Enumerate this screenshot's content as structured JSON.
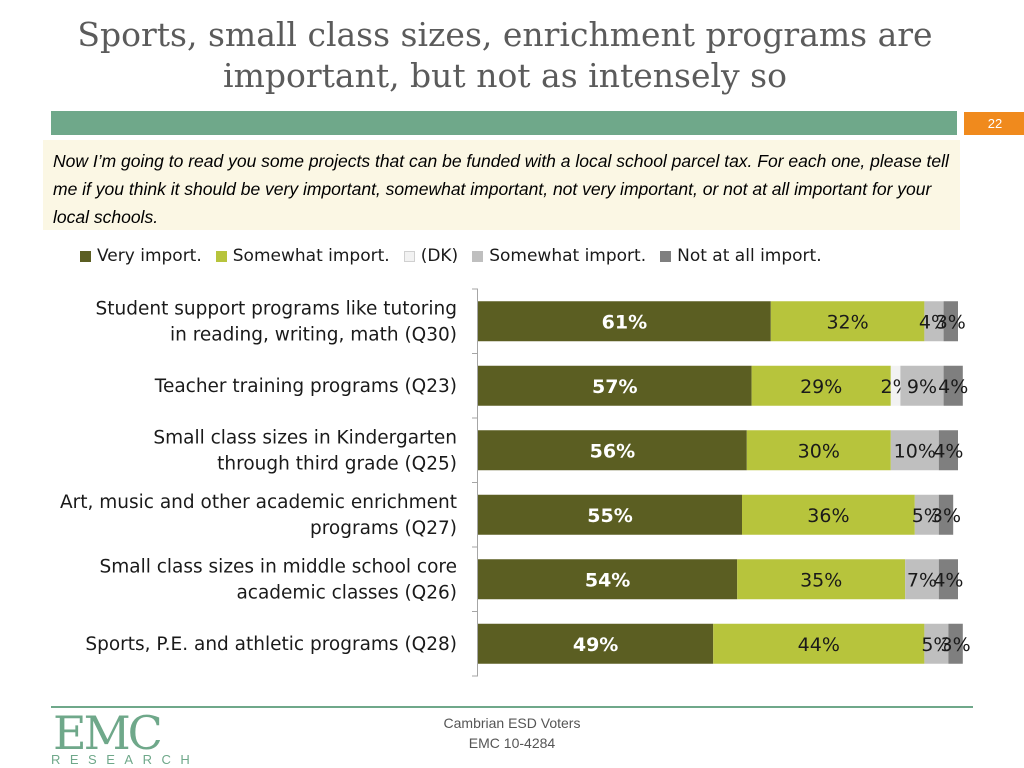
{
  "slide": {
    "title": "Sports, small class sizes, enrichment programs are important, but not as intensely so",
    "page_number": "22",
    "question": "Now I’m going to read you some projects that can be funded with a local school parcel tax. For each one, please tell me if you think it should be very important, somewhat important, not very important, or not at all important for your local schools."
  },
  "colors": {
    "very": "#5b5e22",
    "somewhat": "#b7c43c",
    "dk": "#f2f2f2",
    "not_very": "#bfbfbf",
    "not_at_all": "#7f7f7f",
    "accent_green": "#6fa88a",
    "accent_orange": "#f08a1d"
  },
  "chart_data": {
    "type": "bar",
    "orientation": "horizontal",
    "stacked": true,
    "legend_position": "top",
    "categories": [
      "Student support programs like tutoring in reading, writing, math (Q30)",
      "Teacher training programs (Q23)",
      "Small class sizes in Kindergarten through third grade (Q25)",
      "Art, music and other academic enrichment programs (Q27)",
      "Small class sizes in middle school core academic classes  (Q26)",
      "Sports, P.E. and athletic programs (Q28)"
    ],
    "series": [
      {
        "name": "Very import.",
        "color_key": "very",
        "values": [
          61,
          57,
          56,
          55,
          54,
          49
        ],
        "labels": [
          "61%",
          "57%",
          "56%",
          "55%",
          "54%",
          "49%"
        ]
      },
      {
        "name": "Somewhat import.",
        "color_key": "somewhat",
        "values": [
          32,
          29,
          30,
          36,
          35,
          44
        ],
        "labels": [
          "32%",
          "29%",
          "30%",
          "36%",
          "35%",
          "44%"
        ]
      },
      {
        "name": "(DK)",
        "color_key": "dk",
        "values": [
          0,
          2,
          0,
          0,
          0,
          0
        ],
        "labels": [
          "",
          "2%",
          "",
          "",
          "",
          ""
        ]
      },
      {
        "name": "Somewhat import.",
        "color_key": "not_very",
        "values": [
          4,
          9,
          10,
          5,
          7,
          5
        ],
        "labels": [
          "4%",
          "9%",
          "10%",
          "5%",
          "7%",
          "5%"
        ]
      },
      {
        "name": "Not at all import.",
        "color_key": "not_at_all",
        "values": [
          3,
          4,
          4,
          3,
          4,
          3
        ],
        "labels": [
          "3%",
          "4%",
          "4%",
          "3%",
          "4%",
          "3%"
        ]
      }
    ],
    "xlim": [
      0,
      100
    ]
  },
  "footer": {
    "line1": "Cambrian ESD Voters",
    "line2": "EMC 10-4284",
    "logo_text": "EMC",
    "logo_subtext": "RESEARCH"
  }
}
